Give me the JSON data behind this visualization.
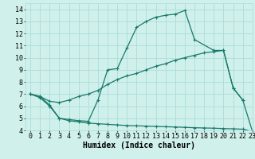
{
  "bg_color": "#cff0eb",
  "grid_color": "#aaddda",
  "line_color": "#1a7a6a",
  "xlabel": "Humidex (Indice chaleur)",
  "xlim": [
    -0.5,
    23
  ],
  "ylim": [
    4,
    14.5
  ],
  "xticks": [
    0,
    1,
    2,
    3,
    4,
    5,
    6,
    7,
    8,
    9,
    10,
    11,
    12,
    13,
    14,
    15,
    16,
    17,
    18,
    19,
    20,
    21,
    22,
    23
  ],
  "yticks": [
    4,
    5,
    6,
    7,
    8,
    9,
    10,
    11,
    12,
    13,
    14
  ],
  "line1_x": [
    0,
    1,
    2,
    3,
    4,
    5,
    6,
    7,
    8,
    9,
    10,
    11,
    12,
    13,
    14,
    15,
    16,
    17,
    19,
    20,
    21,
    22,
    23
  ],
  "line1_y": [
    7.0,
    6.7,
    6.0,
    5.0,
    4.9,
    4.8,
    4.75,
    6.5,
    9.0,
    9.1,
    10.8,
    12.5,
    13.0,
    13.35,
    13.5,
    13.6,
    13.9,
    11.5,
    10.6,
    10.6,
    7.5,
    6.5,
    3.9
  ],
  "line2_x": [
    0,
    1,
    2,
    3,
    4,
    5,
    6,
    7,
    8,
    9,
    10,
    11,
    12,
    13,
    14,
    15,
    16,
    17,
    18,
    19,
    20,
    21,
    22
  ],
  "line2_y": [
    7.0,
    6.8,
    6.4,
    6.3,
    6.5,
    6.8,
    7.0,
    7.3,
    7.8,
    8.2,
    8.5,
    8.7,
    9.0,
    9.3,
    9.5,
    9.8,
    10.0,
    10.2,
    10.4,
    10.5,
    10.6,
    7.5,
    6.5
  ],
  "line3_x": [
    0,
    1,
    2,
    3,
    4,
    5,
    6,
    7,
    8,
    9,
    10,
    11,
    12,
    13,
    14,
    15,
    16,
    17,
    18,
    19,
    20,
    21,
    22,
    23
  ],
  "line3_y": [
    7.0,
    6.8,
    6.1,
    5.0,
    4.8,
    4.7,
    4.6,
    4.55,
    4.5,
    4.45,
    4.4,
    4.38,
    4.35,
    4.33,
    4.3,
    4.28,
    4.25,
    4.22,
    4.2,
    4.18,
    4.15,
    4.13,
    4.1,
    3.9
  ],
  "marker": "+",
  "markersize": 3.5,
  "linewidth": 0.9,
  "xlabel_fontsize": 7,
  "tick_fontsize": 6
}
